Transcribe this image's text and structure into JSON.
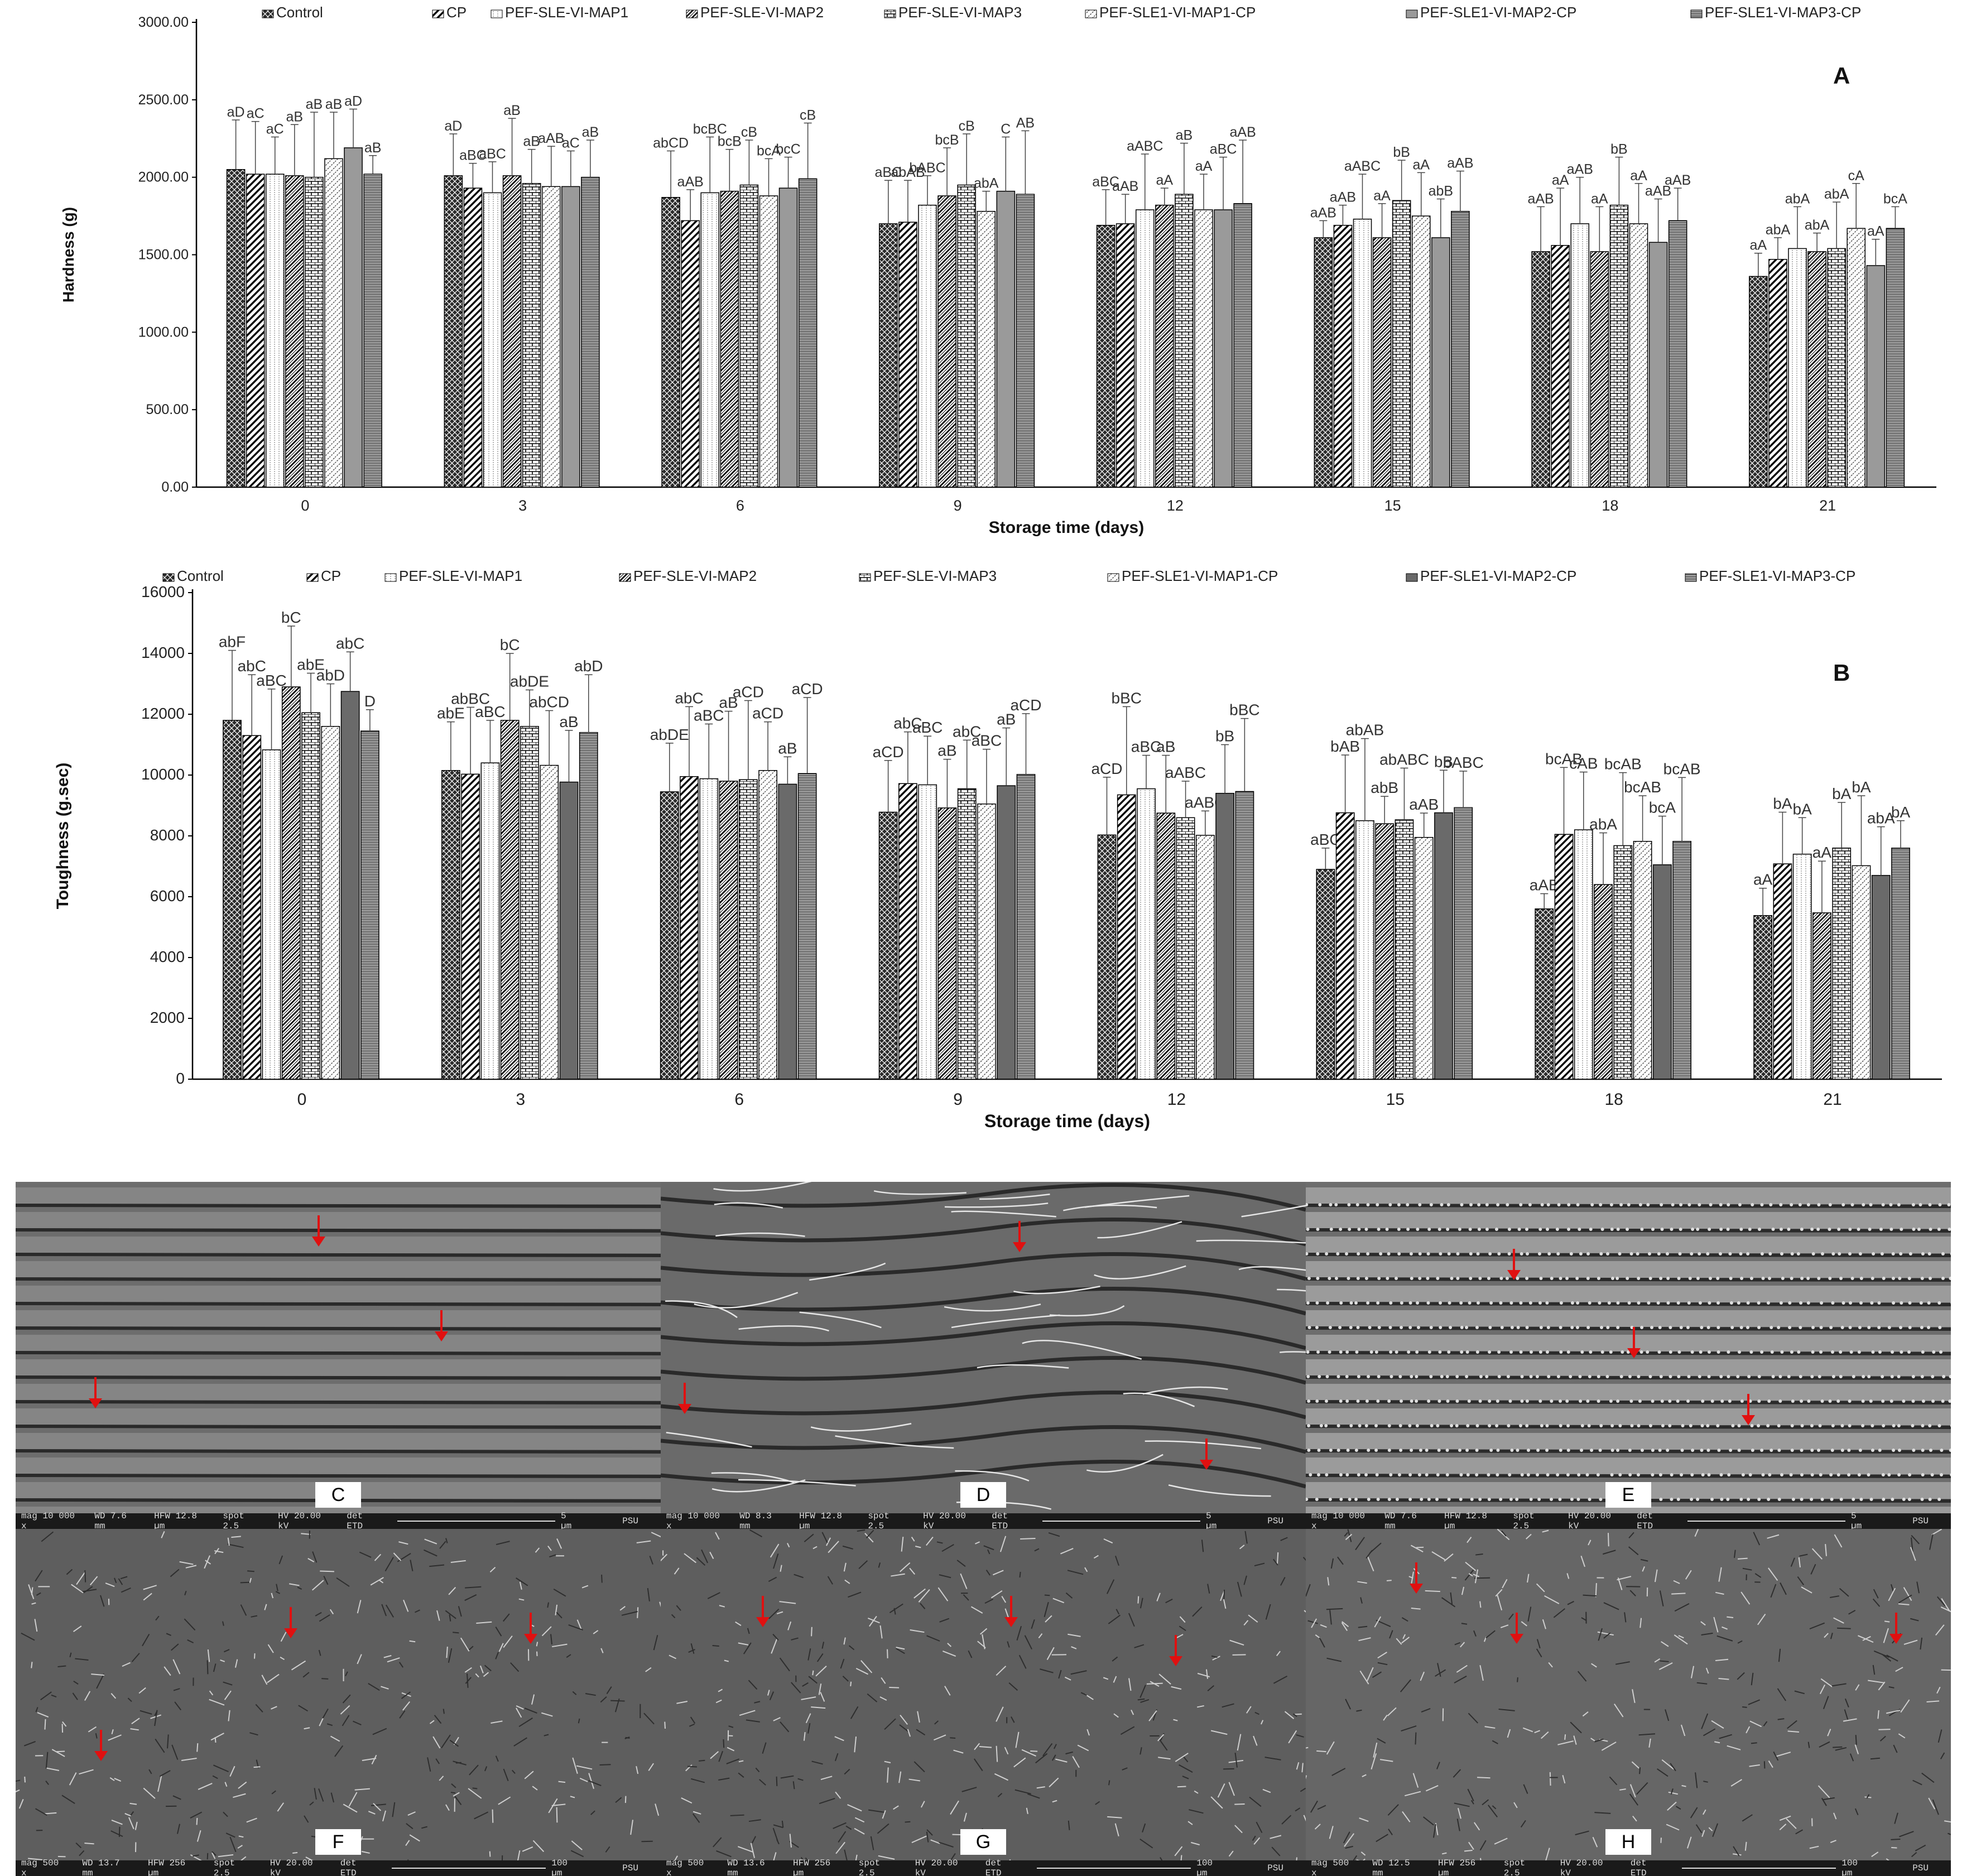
{
  "chart_data": [
    {
      "type": "bar",
      "panel_label": "A",
      "ylabel": "Hardness (g)",
      "xlabel": "Storage time (days)",
      "ylim": [
        0,
        3000
      ],
      "yticks": [
        "0.00",
        "500.00",
        "1000.00",
        "1500.00",
        "2000.00",
        "2500.00",
        "3000.00"
      ],
      "categories": [
        "0",
        "3",
        "6",
        "9",
        "12",
        "15",
        "18",
        "21"
      ],
      "legend_position": "top",
      "series": [
        {
          "name": "Control",
          "values": [
            2050,
            2010,
            1870,
            1700,
            1690,
            1610,
            1520,
            1360
          ],
          "errors": [
            320,
            270,
            300,
            280,
            230,
            110,
            290,
            150
          ],
          "labels": [
            "aD",
            "aD",
            "abCD",
            "aBC",
            "aBC",
            "aAB",
            "aAB",
            "aA"
          ]
        },
        {
          "name": "CP",
          "values": [
            2020,
            1930,
            1720,
            1710,
            1700,
            1690,
            1560,
            1470
          ],
          "errors": [
            340,
            160,
            200,
            270,
            190,
            130,
            370,
            140
          ],
          "labels": [
            "aC",
            "aBC",
            "aAB",
            "abAB",
            "aAB",
            "aAB",
            "aA",
            "abA"
          ]
        },
        {
          "name": "PEF-SLE-VI-MAP1",
          "values": [
            2020,
            1900,
            1900,
            1820,
            1790,
            1730,
            1700,
            1540
          ],
          "errors": [
            240,
            200,
            360,
            190,
            360,
            290,
            300,
            270
          ],
          "labels": [
            "aC",
            "aBC",
            "bcBC",
            "bABC",
            "aABC",
            "aABC",
            "aAB",
            "abA"
          ]
        },
        {
          "name": "PEF-SLE-VI-MAP2",
          "values": [
            2010,
            2010,
            1910,
            1880,
            1820,
            1610,
            1520,
            1520
          ],
          "errors": [
            330,
            370,
            270,
            310,
            110,
            220,
            290,
            120
          ],
          "labels": [
            "aB",
            "aB",
            "bcB",
            "bcB",
            "aA",
            "aA",
            "aA",
            "abA"
          ]
        },
        {
          "name": "PEF-SLE-VI-MAP3",
          "values": [
            2000,
            1960,
            1950,
            1950,
            1890,
            1850,
            1820,
            1540
          ],
          "errors": [
            420,
            220,
            290,
            330,
            330,
            260,
            310,
            300
          ],
          "labels": [
            "aB",
            "aB",
            "cB",
            "cB",
            "aB",
            "bB",
            "bB",
            "abA"
          ]
        },
        {
          "name": "PEF-SLE1-VI-MAP1-CP",
          "values": [
            2120,
            1940,
            1880,
            1780,
            1790,
            1750,
            1700,
            1670
          ],
          "errors": [
            300,
            260,
            240,
            130,
            230,
            280,
            260,
            290
          ],
          "labels": [
            "aB",
            "aAB",
            "bcA",
            "abA",
            "aA",
            "aA",
            "aA",
            "cA"
          ]
        },
        {
          "name": "PEF-SLE1-VI-MAP2-CP",
          "values": [
            2190,
            1940,
            1930,
            1910,
            1790,
            1610,
            1580,
            1430
          ],
          "errors": [
            250,
            230,
            200,
            350,
            340,
            250,
            280,
            170
          ],
          "labels": [
            "aD",
            "aC",
            "bcC",
            "C",
            "aBC",
            "abB",
            "aAB",
            "aA"
          ]
        },
        {
          "name": "PEF-SLE1-VI-MAP3-CP",
          "values": [
            2020,
            2000,
            1990,
            1890,
            1830,
            1780,
            1720,
            1670
          ],
          "errors": [
            120,
            240,
            360,
            410,
            410,
            260,
            210,
            140
          ],
          "labels": [
            "aB",
            "aB",
            "cB",
            "AB",
            "aAB",
            "aAB",
            "aAB",
            "bcA"
          ]
        }
      ]
    },
    {
      "type": "bar",
      "panel_label": "B",
      "ylabel": "Toughness (g.sec)",
      "xlabel": "Storage time (days)",
      "ylim": [
        0,
        16000
      ],
      "yticks": [
        "0",
        "2000",
        "4000",
        "6000",
        "8000",
        "10000",
        "12000",
        "14000",
        "16000"
      ],
      "categories": [
        "0",
        "3",
        "6",
        "9",
        "12",
        "15",
        "18",
        "21"
      ],
      "legend_position": "top",
      "series": [
        {
          "name": "Control",
          "values": [
            11800,
            10150,
            9450,
            8780,
            8030,
            6900,
            5600,
            5380
          ],
          "errors": [
            2300,
            1600,
            1600,
            1700,
            1900,
            700,
            500,
            900
          ],
          "labels": [
            "abF",
            "abE",
            "abDE",
            "aCD",
            "aCD",
            "aBC",
            "aAB",
            "aA"
          ]
        },
        {
          "name": "CP",
          "values": [
            11300,
            10030,
            9950,
            9720,
            9350,
            8760,
            8050,
            7080
          ],
          "errors": [
            2000,
            2200,
            2300,
            1700,
            2900,
            1900,
            2200,
            1700
          ],
          "labels": [
            "abC",
            "abBC",
            "abC",
            "abC",
            "bBC",
            "bAB",
            "bcAB",
            "bA"
          ]
        },
        {
          "name": "PEF-SLE-VI-MAP1",
          "values": [
            10830,
            10400,
            9880,
            9680,
            9550,
            8500,
            8200,
            7400
          ],
          "errors": [
            2000,
            1400,
            1800,
            1600,
            1100,
            2700,
            1900,
            1200
          ],
          "labels": [
            "aBC",
            "aBC",
            "aBC",
            "aBC",
            "aBC",
            "abAB",
            "cAB",
            "bA"
          ]
        },
        {
          "name": "PEF-SLE-VI-MAP2",
          "values": [
            12900,
            11800,
            9800,
            8920,
            8750,
            8400,
            6400,
            5470
          ],
          "errors": [
            2000,
            2200,
            2300,
            1600,
            1900,
            900,
            1700,
            1700
          ],
          "labels": [
            "bC",
            "bC",
            "aB",
            "aB",
            "aB",
            "abB",
            "abA",
            "aA"
          ]
        },
        {
          "name": "PEF-SLE-VI-MAP3",
          "values": [
            12050,
            11600,
            9850,
            9550,
            8600,
            8530,
            7680,
            7600
          ],
          "errors": [
            1300,
            1200,
            2600,
            1600,
            1200,
            1700,
            2400,
            1500
          ],
          "labels": [
            "abE",
            "abDE",
            "aCD",
            "abC",
            "aABC",
            "abABC",
            "bcAB",
            "bA"
          ]
        },
        {
          "name": "PEF-SLE1-VI-MAP1-CP",
          "values": [
            11600,
            10320,
            10150,
            9050,
            8020,
            7950,
            7820,
            7020
          ],
          "errors": [
            1400,
            1800,
            1600,
            1800,
            800,
            800,
            1500,
            2300
          ],
          "labels": [
            "abD",
            "abCD",
            "aCD",
            "aBC",
            "aABC",
            "aAB",
            "bcAB",
            "bA"
          ]
        },
        {
          "name": "PEF-SLE1-VI-MAP2-CP",
          "values": [
            12750,
            9770,
            9700,
            9650,
            9400,
            8760,
            7050,
            6700
          ],
          "errors": [
            1300,
            1700,
            900,
            1900,
            1600,
            1400,
            1600,
            1600
          ],
          "labels": [
            "abC",
            "aB",
            "aB",
            "aB",
            "bB",
            "bB",
            "bcA",
            "abA"
          ]
        },
        {
          "name": "PEF-SLE1-VI-MAP3-CP",
          "values": [
            11450,
            11400,
            10050,
            10020,
            9460,
            8930,
            7820,
            7600
          ],
          "errors": [
            700,
            1900,
            2500,
            2000,
            2400,
            1200,
            2100,
            900
          ],
          "labels": [
            "D",
            "abD",
            "aCD",
            "aCD",
            "bBC",
            "bABC",
            "bcAB",
            "bA"
          ]
        }
      ]
    }
  ],
  "sem": {
    "panels": [
      {
        "letter": "C",
        "mag": "10 000 x",
        "wd": "7.6 mm",
        "hfw": "12.8 µm",
        "spot": "2.5",
        "hv": "20.00 kV",
        "det": "ETD",
        "scale": "5 µm",
        "lab": "PSU",
        "texture": "striated"
      },
      {
        "letter": "D",
        "mag": "10 000 x",
        "wd": "8.3 mm",
        "hfw": "12.8 µm",
        "spot": "2.5",
        "hv": "20.00 kV",
        "det": "ETD",
        "scale": "5 µm",
        "lab": "PSU",
        "texture": "fibrous-sheet"
      },
      {
        "letter": "E",
        "mag": "10 000 x",
        "wd": "7.6 mm",
        "hfw": "12.8 µm",
        "spot": "2.5",
        "hv": "20.00 kV",
        "det": "ETD",
        "scale": "5 µm",
        "lab": "PSU",
        "texture": "striated"
      },
      {
        "letter": "F",
        "mag": "500 x",
        "wd": "13.7 mm",
        "hfw": "256 µm",
        "spot": "2.5",
        "hv": "20.00 kV",
        "det": "ETD",
        "scale": "100 µm",
        "lab": "PSU",
        "texture": "porous"
      },
      {
        "letter": "G",
        "mag": "500 x",
        "wd": "13.6 mm",
        "hfw": "256 µm",
        "spot": "2.5",
        "hv": "20.00 kV",
        "det": "ETD",
        "scale": "100 µm",
        "lab": "PSU",
        "texture": "porous"
      },
      {
        "letter": "H",
        "mag": "500 x",
        "wd": "12.5 mm",
        "hfw": "256 µm",
        "spot": "2.5",
        "hv": "20.00 kV",
        "det": "ETD",
        "scale": "100 µm",
        "lab": "PSU",
        "texture": "porous"
      }
    ],
    "footer_labels": {
      "mag": "mag",
      "wd": "WD",
      "hfw": "HFW",
      "spot": "spot",
      "hv": "HV",
      "det": "det"
    },
    "arrow_color": "#e01010"
  }
}
